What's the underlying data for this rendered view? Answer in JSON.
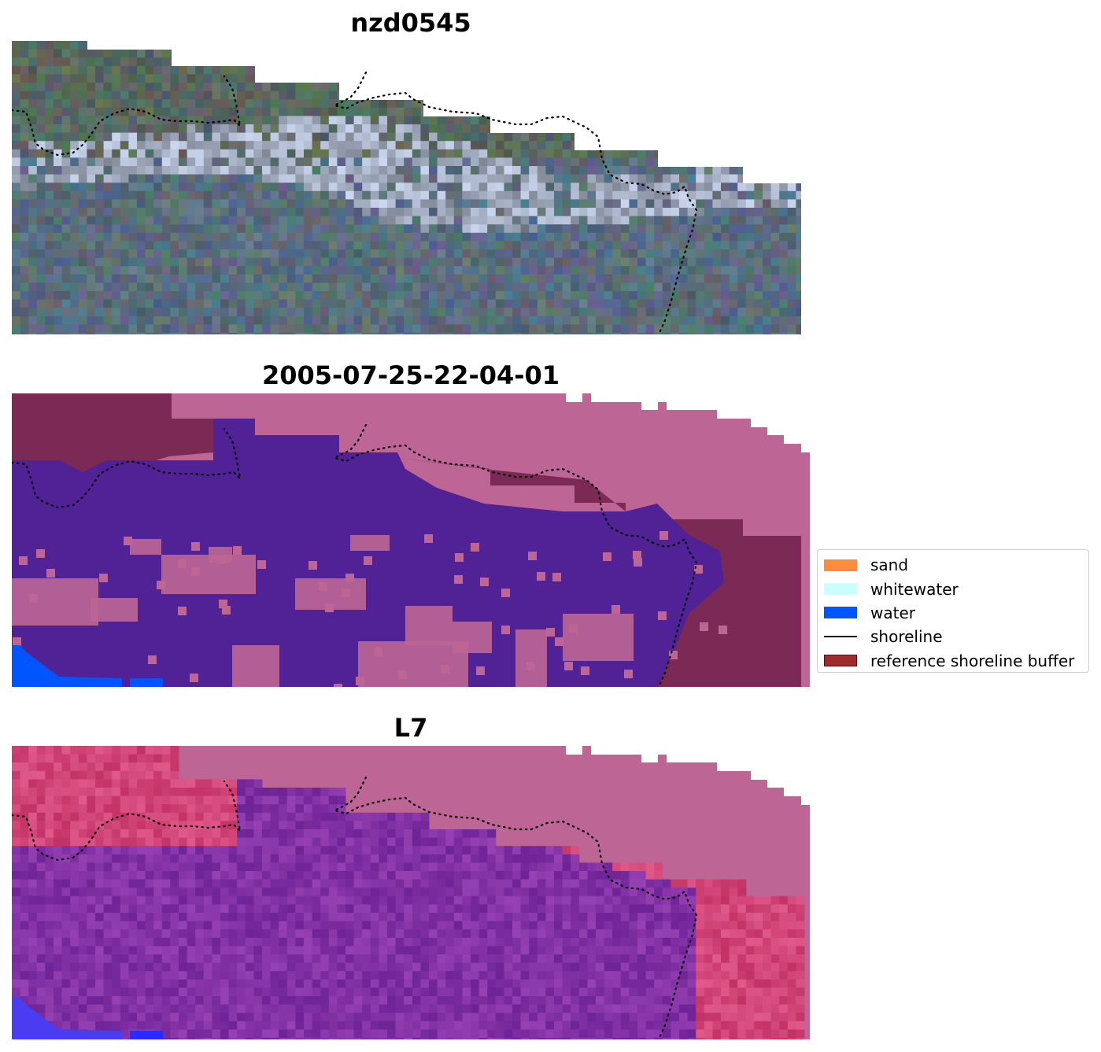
{
  "panels": [
    {
      "title": "nzd0545",
      "kind": "rgb"
    },
    {
      "title": "2005-07-25-22-04-01",
      "kind": "classes"
    },
    {
      "title": "L7",
      "kind": "index"
    }
  ],
  "legend": {
    "items": [
      {
        "label": "sand",
        "type": "patch",
        "color": "#ff8c3c"
      },
      {
        "label": "whitewater",
        "type": "patch",
        "color": "#c8ffff"
      },
      {
        "label": "water",
        "type": "patch",
        "color": "#0055ff"
      },
      {
        "label": "shoreline",
        "type": "line",
        "color": "#000000"
      },
      {
        "label": "reference shoreline buffer",
        "type": "patch",
        "color": "#9e2c2c"
      }
    ]
  },
  "colors": {
    "nodata_mask": "#bd6695",
    "buffer": "#7a2a55",
    "classified_water_overlay": "#512296",
    "water": "#0055ff",
    "shoreline": "#000000"
  }
}
